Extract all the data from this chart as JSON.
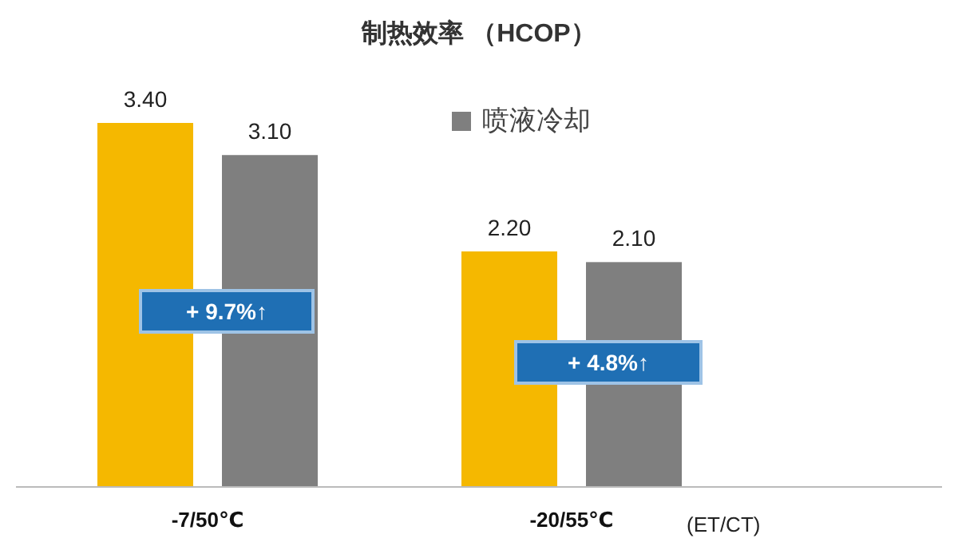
{
  "chart_data": {
    "type": "bar",
    "title": "制热效率 （HCOP）",
    "xlabel": "(ET/CT)",
    "categories": [
      "-7/50℃",
      "-20/55℃"
    ],
    "series": [
      {
        "color": "#f5b800",
        "values": [
          3.4,
          2.2
        ],
        "value_labels": [
          "3.40",
          "2.20"
        ]
      },
      {
        "name": "喷液冷却",
        "color": "#7f7f7f",
        "values": [
          3.1,
          2.1
        ],
        "value_labels": [
          "3.10",
          "2.10"
        ]
      }
    ],
    "annotations": [
      "+ 9.7%↑",
      "+ 4.8%↑"
    ],
    "legend": "top right"
  }
}
